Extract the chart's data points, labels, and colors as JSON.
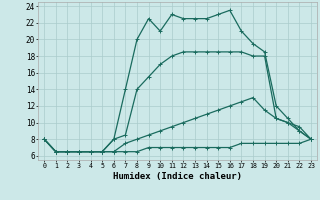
{
  "xlabel": "Humidex (Indice chaleur)",
  "xlim": [
    -0.5,
    23.5
  ],
  "ylim": [
    5.5,
    24.5
  ],
  "xticks": [
    0,
    1,
    2,
    3,
    4,
    5,
    6,
    7,
    8,
    9,
    10,
    11,
    12,
    13,
    14,
    15,
    16,
    17,
    18,
    19,
    20,
    21,
    22,
    23
  ],
  "yticks": [
    6,
    8,
    10,
    12,
    14,
    16,
    18,
    20,
    22,
    24
  ],
  "bg_color": "#cce8e8",
  "grid_color": "#aacccc",
  "line_color": "#1a6b5e",
  "curves": [
    {
      "x": [
        0,
        1,
        2,
        3,
        4,
        5,
        6,
        7,
        8,
        9,
        10,
        11,
        12,
        13,
        14,
        15,
        16,
        17,
        18,
        19,
        20,
        21,
        22,
        23
      ],
      "y": [
        8,
        6.5,
        6.5,
        6.5,
        6.5,
        6.5,
        6.5,
        6.5,
        6.5,
        7.0,
        7.0,
        7.0,
        7.0,
        7.0,
        7.0,
        7.0,
        7.0,
        7.5,
        7.5,
        7.5,
        7.5,
        7.5,
        7.5,
        8.0
      ]
    },
    {
      "x": [
        0,
        1,
        2,
        3,
        4,
        5,
        6,
        7,
        8,
        9,
        10,
        11,
        12,
        13,
        14,
        15,
        16,
        17,
        18,
        19,
        20,
        21,
        22,
        23
      ],
      "y": [
        8,
        6.5,
        6.5,
        6.5,
        6.5,
        6.5,
        6.5,
        7.5,
        8.0,
        8.5,
        9.0,
        9.5,
        10.0,
        10.5,
        11.0,
        11.5,
        12.0,
        12.5,
        13.0,
        11.5,
        10.5,
        10.0,
        9.5,
        8.0
      ]
    },
    {
      "x": [
        0,
        1,
        2,
        3,
        4,
        5,
        6,
        7,
        8,
        9,
        10,
        11,
        12,
        13,
        14,
        15,
        16,
        17,
        18,
        19,
        20,
        21,
        22,
        23
      ],
      "y": [
        8,
        6.5,
        6.5,
        6.5,
        6.5,
        6.5,
        8.0,
        8.5,
        14.0,
        15.5,
        17.0,
        18.0,
        18.5,
        18.5,
        18.5,
        18.5,
        18.5,
        18.5,
        18.0,
        18.0,
        10.5,
        10.0,
        9.0,
        8.0
      ]
    },
    {
      "x": [
        0,
        1,
        2,
        3,
        4,
        5,
        6,
        7,
        8,
        9,
        10,
        11,
        12,
        13,
        14,
        15,
        16,
        17,
        18,
        19,
        20,
        21,
        22,
        23
      ],
      "y": [
        8,
        6.5,
        6.5,
        6.5,
        6.5,
        6.5,
        8.0,
        14.0,
        20.0,
        22.5,
        21.0,
        23.0,
        22.5,
        22.5,
        22.5,
        23.0,
        23.5,
        21.0,
        19.5,
        18.5,
        12.0,
        10.5,
        9.0,
        8.0
      ]
    }
  ]
}
